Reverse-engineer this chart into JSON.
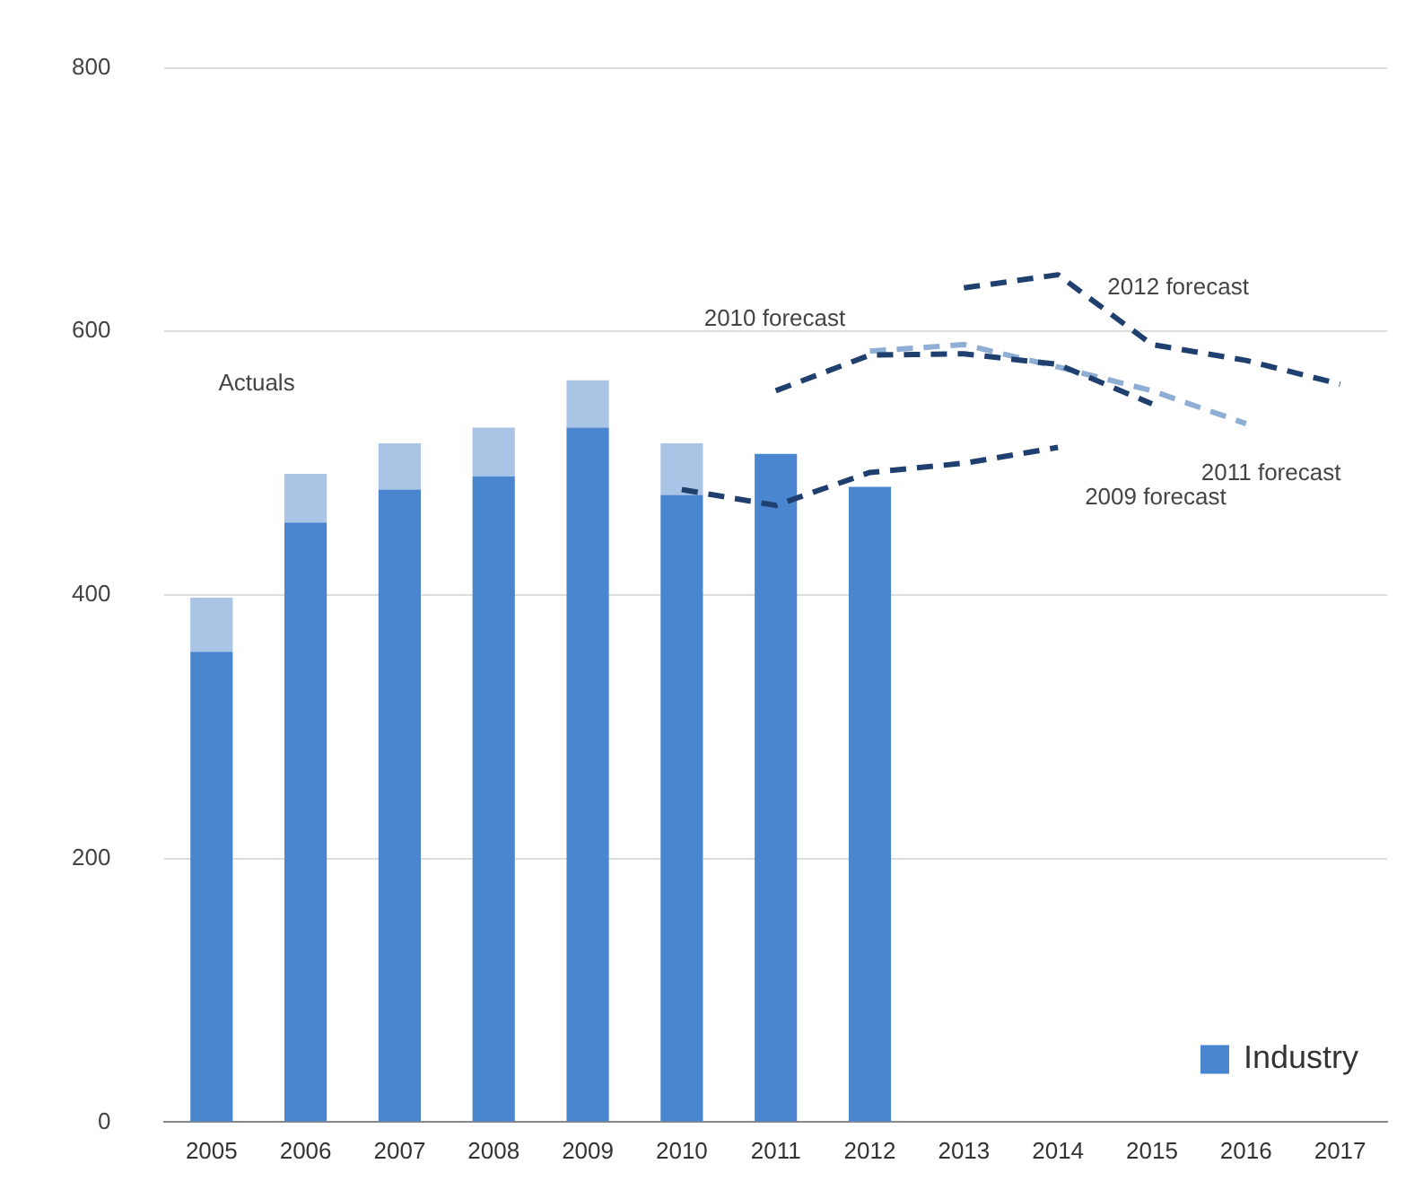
{
  "chart_data": {
    "type": "bar",
    "stacked": true,
    "categories": [
      "2005",
      "2006",
      "2007",
      "2008",
      "2009",
      "2010",
      "2011",
      "2012",
      "2013",
      "2014",
      "2015",
      "2016",
      "2017"
    ],
    "series": [
      {
        "name": "Industry",
        "color": "#4a86cf",
        "values": [
          357,
          455,
          480,
          490,
          527,
          476,
          507,
          482,
          null,
          null,
          null,
          null,
          null
        ]
      },
      {
        "color": "#a9c4e4",
        "values": [
          41,
          37,
          35,
          37,
          36,
          39,
          null,
          null,
          null,
          null,
          null,
          null,
          null
        ]
      },
      {
        "type": "line",
        "name": "2009 forecast",
        "color": "#1f3f6e",
        "line_style": "dashed",
        "marker": "none",
        "values": [
          null,
          null,
          null,
          null,
          null,
          480,
          468,
          493,
          500,
          512,
          null,
          null,
          null
        ]
      },
      {
        "type": "line",
        "name": "2010 forecast",
        "color": "#1f3f6e",
        "line_style": "dashed",
        "marker": "none",
        "values": [
          null,
          null,
          null,
          null,
          null,
          null,
          555,
          582,
          583,
          575,
          545,
          null,
          null
        ]
      },
      {
        "type": "line",
        "name": "2011 forecast",
        "color": "#8eaed6",
        "line_style": "dashed",
        "marker": "none",
        "values": [
          null,
          null,
          null,
          null,
          null,
          null,
          null,
          585,
          590,
          573,
          555,
          530,
          null
        ]
      },
      {
        "type": "line",
        "name": "2012 forecast",
        "color": "#1f3f6e",
        "line_style": "dashed",
        "marker": "none",
        "values": [
          null,
          null,
          null,
          null,
          null,
          null,
          null,
          null,
          633,
          643,
          590,
          578,
          560
        ]
      }
    ],
    "annotations": [
      "Actuals"
    ],
    "ylim": [
      0,
      800
    ],
    "yticks": [
      0,
      200,
      400,
      600,
      800
    ],
    "grid": "y",
    "legend": "bottom right"
  }
}
